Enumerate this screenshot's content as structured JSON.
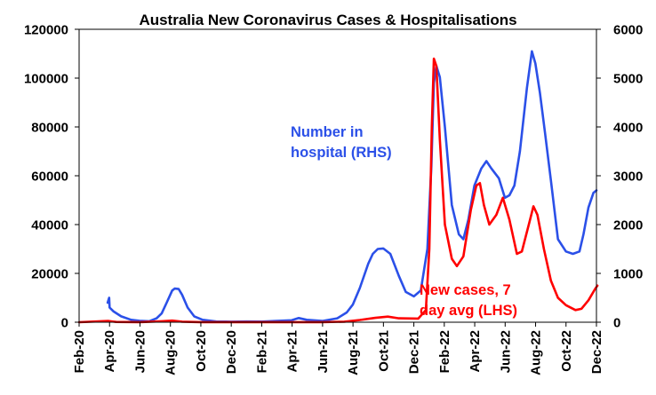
{
  "chart_data": {
    "type": "line",
    "title": "Australia New Coronavirus Cases & Hospitalisations",
    "x_tick_labels": [
      "Feb-20",
      "Apr-20",
      "Jun-20",
      "Aug-20",
      "Oct-20",
      "Dec-20",
      "Feb-21",
      "Apr-21",
      "Jun-21",
      "Aug-21",
      "Oct-21",
      "Dec-21",
      "Feb-22",
      "Apr-22",
      "Jun-22",
      "Aug-22",
      "Oct-22",
      "Dec-22"
    ],
    "y_left": {
      "ylim": [
        0,
        120000
      ],
      "ticks": [
        "0",
        "20000",
        "40000",
        "60000",
        "80000",
        "100000",
        "120000"
      ],
      "tick_values": [
        0,
        20000,
        40000,
        60000,
        80000,
        100000,
        120000
      ]
    },
    "y_right": {
      "ylim": [
        0,
        6000
      ],
      "ticks": [
        "0",
        "1000",
        "2000",
        "3000",
        "4000",
        "5000",
        "6000"
      ],
      "tick_values": [
        0,
        1000,
        2000,
        3000,
        4000,
        5000,
        6000
      ]
    },
    "grid": false,
    "legend": "none",
    "annotations": [
      {
        "lines": [
          "Number in",
          "hospital (RHS)"
        ],
        "series": "hospital",
        "color": "#2b50e8"
      },
      {
        "lines": [
          "New cases, 7",
          "day avg (LHS)"
        ],
        "series": "cases",
        "color": "#ff0000"
      }
    ],
    "series": [
      {
        "key": "hospital",
        "axis": "right",
        "color": "#2b50e8",
        "points": [
          [
            "2020-03-29",
            400
          ],
          [
            "2020-04-01",
            500
          ],
          [
            "2020-04-02",
            300
          ],
          [
            "2020-04-10",
            220
          ],
          [
            "2020-04-25",
            120
          ],
          [
            "2020-05-15",
            50
          ],
          [
            "2020-06-01",
            30
          ],
          [
            "2020-06-20",
            20
          ],
          [
            "2020-07-05",
            80
          ],
          [
            "2020-07-15",
            180
          ],
          [
            "2020-07-25",
            400
          ],
          [
            "2020-08-05",
            650
          ],
          [
            "2020-08-10",
            690
          ],
          [
            "2020-08-18",
            680
          ],
          [
            "2020-08-25",
            560
          ],
          [
            "2020-09-05",
            300
          ],
          [
            "2020-09-18",
            120
          ],
          [
            "2020-10-05",
            50
          ],
          [
            "2020-11-01",
            15
          ],
          [
            "2020-12-01",
            10
          ],
          [
            "2021-01-01",
            15
          ],
          [
            "2021-02-01",
            12
          ],
          [
            "2021-03-01",
            25
          ],
          [
            "2021-04-01",
            40
          ],
          [
            "2021-04-15",
            85
          ],
          [
            "2021-05-01",
            50
          ],
          [
            "2021-06-01",
            25
          ],
          [
            "2021-07-01",
            80
          ],
          [
            "2021-07-20",
            200
          ],
          [
            "2021-08-01",
            360
          ],
          [
            "2021-08-15",
            700
          ],
          [
            "2021-09-01",
            1200
          ],
          [
            "2021-09-10",
            1400
          ],
          [
            "2021-09-20",
            1500
          ],
          [
            "2021-10-01",
            1510
          ],
          [
            "2021-10-15",
            1400
          ],
          [
            "2021-11-01",
            950
          ],
          [
            "2021-11-15",
            620
          ],
          [
            "2021-12-01",
            530
          ],
          [
            "2021-12-15",
            650
          ],
          [
            "2021-12-28",
            1500
          ],
          [
            "2022-01-05",
            3200
          ],
          [
            "2022-01-10",
            4900
          ],
          [
            "2022-01-15",
            5250
          ],
          [
            "2022-01-22",
            5020
          ],
          [
            "2022-02-01",
            4000
          ],
          [
            "2022-02-15",
            2400
          ],
          [
            "2022-03-01",
            1800
          ],
          [
            "2022-03-10",
            1700
          ],
          [
            "2022-03-20",
            2100
          ],
          [
            "2022-04-01",
            2800
          ],
          [
            "2022-04-15",
            3150
          ],
          [
            "2022-04-25",
            3300
          ],
          [
            "2022-05-05",
            3150
          ],
          [
            "2022-05-20",
            2950
          ],
          [
            "2022-06-01",
            2550
          ],
          [
            "2022-06-10",
            2600
          ],
          [
            "2022-06-20",
            2800
          ],
          [
            "2022-07-01",
            3500
          ],
          [
            "2022-07-15",
            4800
          ],
          [
            "2022-07-25",
            5550
          ],
          [
            "2022-08-01",
            5300
          ],
          [
            "2022-08-10",
            4700
          ],
          [
            "2022-08-20",
            3900
          ],
          [
            "2022-09-01",
            2900
          ],
          [
            "2022-09-15",
            1700
          ],
          [
            "2022-10-01",
            1450
          ],
          [
            "2022-10-15",
            1400
          ],
          [
            "2022-10-28",
            1450
          ],
          [
            "2022-11-05",
            1800
          ],
          [
            "2022-11-15",
            2350
          ],
          [
            "2022-11-25",
            2650
          ],
          [
            "2022-12-01",
            2700
          ]
        ]
      },
      {
        "key": "cases",
        "axis": "left",
        "color": "#ff0000",
        "points": [
          [
            "2020-02-01",
            0
          ],
          [
            "2020-03-15",
            400
          ],
          [
            "2020-03-30",
            500
          ],
          [
            "2020-04-15",
            100
          ],
          [
            "2020-06-01",
            50
          ],
          [
            "2020-07-15",
            400
          ],
          [
            "2020-08-05",
            650
          ],
          [
            "2020-08-25",
            200
          ],
          [
            "2020-10-01",
            30
          ],
          [
            "2021-01-01",
            20
          ],
          [
            "2021-06-01",
            20
          ],
          [
            "2021-07-15",
            200
          ],
          [
            "2021-08-15",
            900
          ],
          [
            "2021-09-15",
            1800
          ],
          [
            "2021-10-10",
            2300
          ],
          [
            "2021-11-01",
            1600
          ],
          [
            "2021-12-10",
            1500
          ],
          [
            "2021-12-25",
            5000
          ],
          [
            "2022-01-01",
            30000
          ],
          [
            "2022-01-06",
            80000
          ],
          [
            "2022-01-10",
            108000
          ],
          [
            "2022-01-15",
            105000
          ],
          [
            "2022-01-22",
            75000
          ],
          [
            "2022-02-01",
            40000
          ],
          [
            "2022-02-15",
            26000
          ],
          [
            "2022-02-25",
            23000
          ],
          [
            "2022-03-10",
            27000
          ],
          [
            "2022-03-25",
            46000
          ],
          [
            "2022-04-05",
            56000
          ],
          [
            "2022-04-12",
            57000
          ],
          [
            "2022-04-20",
            48000
          ],
          [
            "2022-05-01",
            40000
          ],
          [
            "2022-05-15",
            44000
          ],
          [
            "2022-05-28",
            51000
          ],
          [
            "2022-06-10",
            42000
          ],
          [
            "2022-06-25",
            28000
          ],
          [
            "2022-07-05",
            29000
          ],
          [
            "2022-07-20",
            41000
          ],
          [
            "2022-07-28",
            47500
          ],
          [
            "2022-08-05",
            44000
          ],
          [
            "2022-08-18",
            30000
          ],
          [
            "2022-09-01",
            17000
          ],
          [
            "2022-09-15",
            10000
          ],
          [
            "2022-10-01",
            7000
          ],
          [
            "2022-10-20",
            5000
          ],
          [
            "2022-11-01",
            5500
          ],
          [
            "2022-11-15",
            9000
          ],
          [
            "2022-11-28",
            13500
          ],
          [
            "2022-12-03",
            15000
          ]
        ]
      }
    ]
  }
}
